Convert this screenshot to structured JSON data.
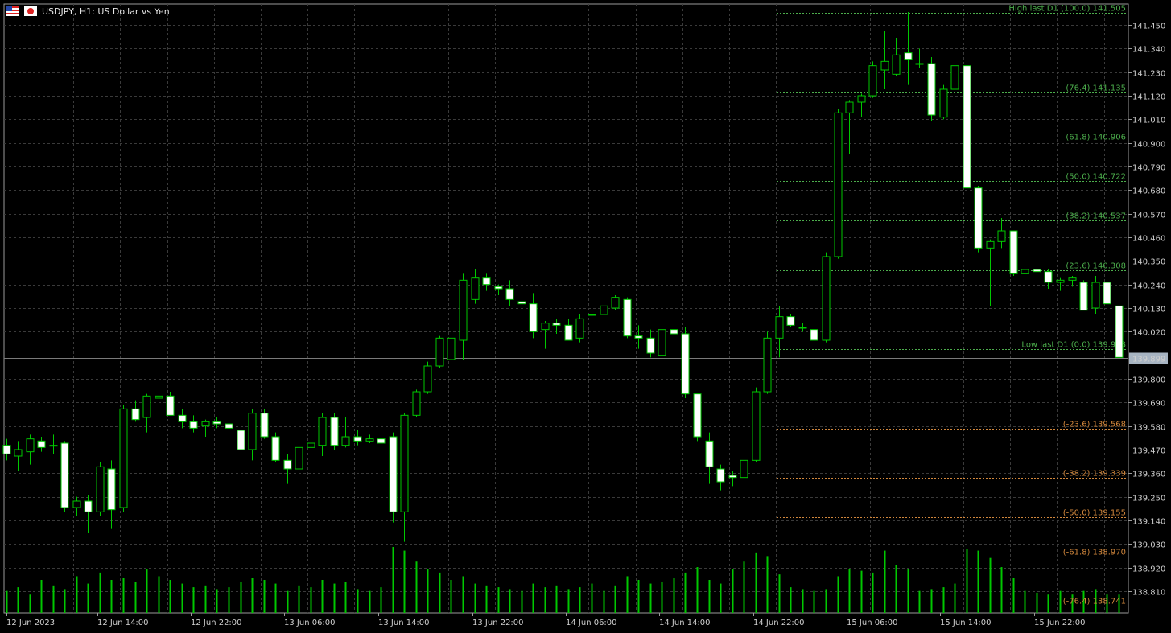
{
  "header": {
    "symbol_title": "USDJPY, H1:  US Dollar vs Yen",
    "flag_left_icon": "us-flag-icon",
    "flag_right_icon": "jp-flag-icon"
  },
  "colors": {
    "background": "#000000",
    "grid": "#3a3a3a",
    "candle_up_fill": "#000000",
    "candle_down_fill": "#ffffff",
    "candle_outline": "#00c800",
    "volume": "#00c800",
    "fib_upper": "#4cae4c",
    "fib_lower": "#d2873c",
    "price_line": "#7a7a7a",
    "current_price_badge": "#a7b4c2"
  },
  "current_price_label": "139.899",
  "chart_data": {
    "type": "candlestick",
    "symbol": "USDJPY",
    "timeframe": "H1",
    "title": "USDJPY, H1:  US Dollar vs Yen",
    "y_axis_labels": [
      "141.450",
      "141.340",
      "141.230",
      "141.120",
      "141.010",
      "140.900",
      "140.790",
      "140.680",
      "140.570",
      "140.460",
      "140.350",
      "140.240",
      "140.130",
      "140.020",
      "139.899",
      "139.800",
      "139.690",
      "139.580",
      "139.470",
      "139.360",
      "139.250",
      "139.140",
      "139.030",
      "138.920",
      "138.810"
    ],
    "x_axis_labels": [
      "12 Jun 2023",
      "12 Jun 14:00",
      "12 Jun 22:00",
      "13 Jun 06:00",
      "13 Jun 14:00",
      "13 Jun 22:00",
      "14 Jun 06:00",
      "14 Jun 14:00",
      "14 Jun 22:00",
      "15 Jun 06:00",
      "15 Jun 14:00",
      "15 Jun 22:00"
    ],
    "current_price": 139.899,
    "fibonacci_levels": [
      {
        "label": "High last D1 (100.0) 141.505",
        "price": 141.505,
        "group": "upper"
      },
      {
        "label": "(76.4) 141.135",
        "price": 141.135,
        "group": "upper"
      },
      {
        "label": "(61.8) 140.906",
        "price": 140.906,
        "group": "upper"
      },
      {
        "label": "(50.0) 140.722",
        "price": 140.722,
        "group": "upper"
      },
      {
        "label": "(38.2) 140.537",
        "price": 140.537,
        "group": "upper"
      },
      {
        "label": "(23.6) 140.308",
        "price": 140.308,
        "group": "upper"
      },
      {
        "label": "Low last D1 (0.0) 139.938",
        "price": 139.938,
        "group": "upper"
      },
      {
        "label": "(-23.6) 139.568",
        "price": 139.568,
        "group": "lower"
      },
      {
        "label": "(-38.2) 139.339",
        "price": 139.339,
        "group": "lower"
      },
      {
        "label": "(-50.0) 139.155",
        "price": 139.155,
        "group": "lower"
      },
      {
        "label": "(-61.8) 138.970",
        "price": 138.97,
        "group": "lower"
      },
      {
        "label": "(-76.4) 138.741",
        "price": 138.741,
        "group": "lower"
      }
    ],
    "candles": [
      {
        "o": 139.49,
        "h": 139.52,
        "l": 139.42,
        "c": 139.45
      },
      {
        "o": 139.44,
        "h": 139.51,
        "l": 139.37,
        "c": 139.47
      },
      {
        "o": 139.46,
        "h": 139.54,
        "l": 139.4,
        "c": 139.52
      },
      {
        "o": 139.51,
        "h": 139.53,
        "l": 139.46,
        "c": 139.48
      },
      {
        "o": 139.49,
        "h": 139.54,
        "l": 139.45,
        "c": 139.49
      },
      {
        "o": 139.5,
        "h": 139.51,
        "l": 139.18,
        "c": 139.2
      },
      {
        "o": 139.2,
        "h": 139.25,
        "l": 139.16,
        "c": 139.23
      },
      {
        "o": 139.23,
        "h": 139.26,
        "l": 139.08,
        "c": 139.18
      },
      {
        "o": 139.18,
        "h": 139.41,
        "l": 139.16,
        "c": 139.39
      },
      {
        "o": 139.38,
        "h": 139.42,
        "l": 139.1,
        "c": 139.19
      },
      {
        "o": 139.2,
        "h": 139.68,
        "l": 139.18,
        "c": 139.66
      },
      {
        "o": 139.66,
        "h": 139.7,
        "l": 139.6,
        "c": 139.61
      },
      {
        "o": 139.62,
        "h": 139.73,
        "l": 139.55,
        "c": 139.72
      },
      {
        "o": 139.71,
        "h": 139.75,
        "l": 139.65,
        "c": 139.72
      },
      {
        "o": 139.72,
        "h": 139.74,
        "l": 139.63,
        "c": 139.63
      },
      {
        "o": 139.63,
        "h": 139.66,
        "l": 139.57,
        "c": 139.6
      },
      {
        "o": 139.6,
        "h": 139.63,
        "l": 139.55,
        "c": 139.57
      },
      {
        "o": 139.58,
        "h": 139.61,
        "l": 139.53,
        "c": 139.6
      },
      {
        "o": 139.6,
        "h": 139.62,
        "l": 139.57,
        "c": 139.59
      },
      {
        "o": 139.59,
        "h": 139.6,
        "l": 139.53,
        "c": 139.57
      },
      {
        "o": 139.56,
        "h": 139.59,
        "l": 139.44,
        "c": 139.47
      },
      {
        "o": 139.47,
        "h": 139.66,
        "l": 139.42,
        "c": 139.64
      },
      {
        "o": 139.64,
        "h": 139.66,
        "l": 139.52,
        "c": 139.53
      },
      {
        "o": 139.53,
        "h": 139.55,
        "l": 139.41,
        "c": 139.42
      },
      {
        "o": 139.42,
        "h": 139.45,
        "l": 139.31,
        "c": 139.38
      },
      {
        "o": 139.38,
        "h": 139.5,
        "l": 139.37,
        "c": 139.48
      },
      {
        "o": 139.48,
        "h": 139.52,
        "l": 139.43,
        "c": 139.5
      },
      {
        "o": 139.49,
        "h": 139.64,
        "l": 139.44,
        "c": 139.62
      },
      {
        "o": 139.62,
        "h": 139.64,
        "l": 139.47,
        "c": 139.49
      },
      {
        "o": 139.49,
        "h": 139.62,
        "l": 139.48,
        "c": 139.53
      },
      {
        "o": 139.53,
        "h": 139.56,
        "l": 139.49,
        "c": 139.51
      },
      {
        "o": 139.51,
        "h": 139.54,
        "l": 139.5,
        "c": 139.52
      },
      {
        "o": 139.52,
        "h": 139.55,
        "l": 139.49,
        "c": 139.5
      },
      {
        "o": 139.53,
        "h": 139.55,
        "l": 139.13,
        "c": 139.18
      },
      {
        "o": 139.18,
        "h": 139.64,
        "l": 139.04,
        "c": 139.63
      },
      {
        "o": 139.63,
        "h": 139.75,
        "l": 139.62,
        "c": 139.74
      },
      {
        "o": 139.74,
        "h": 139.88,
        "l": 139.73,
        "c": 139.86
      },
      {
        "o": 139.86,
        "h": 140.0,
        "l": 139.85,
        "c": 139.99
      },
      {
        "o": 139.89,
        "h": 139.99,
        "l": 139.87,
        "c": 139.99
      },
      {
        "o": 139.98,
        "h": 140.29,
        "l": 139.89,
        "c": 140.26
      },
      {
        "o": 140.17,
        "h": 140.31,
        "l": 140.15,
        "c": 140.27
      },
      {
        "o": 140.27,
        "h": 140.29,
        "l": 140.21,
        "c": 140.24
      },
      {
        "o": 140.23,
        "h": 140.24,
        "l": 140.19,
        "c": 140.22
      },
      {
        "o": 140.22,
        "h": 140.26,
        "l": 140.14,
        "c": 140.17
      },
      {
        "o": 140.16,
        "h": 140.25,
        "l": 140.13,
        "c": 140.15
      },
      {
        "o": 140.15,
        "h": 140.2,
        "l": 139.99,
        "c": 140.02
      },
      {
        "o": 140.03,
        "h": 140.07,
        "l": 139.94,
        "c": 140.06
      },
      {
        "o": 140.06,
        "h": 140.08,
        "l": 140.01,
        "c": 140.05
      },
      {
        "o": 140.05,
        "h": 140.08,
        "l": 140.0,
        "c": 139.98
      },
      {
        "o": 139.99,
        "h": 140.1,
        "l": 139.97,
        "c": 140.08
      },
      {
        "o": 140.1,
        "h": 140.12,
        "l": 140.08,
        "c": 140.1
      },
      {
        "o": 140.1,
        "h": 140.16,
        "l": 140.06,
        "c": 140.14
      },
      {
        "o": 140.13,
        "h": 140.19,
        "l": 140.12,
        "c": 140.18
      },
      {
        "o": 140.17,
        "h": 140.18,
        "l": 139.99,
        "c": 140.0
      },
      {
        "o": 140.0,
        "h": 140.05,
        "l": 139.94,
        "c": 139.99
      },
      {
        "o": 139.99,
        "h": 140.03,
        "l": 139.9,
        "c": 139.92
      },
      {
        "o": 139.91,
        "h": 140.05,
        "l": 139.9,
        "c": 140.03
      },
      {
        "o": 140.03,
        "h": 140.07,
        "l": 140.0,
        "c": 140.01
      },
      {
        "o": 140.01,
        "h": 140.04,
        "l": 139.71,
        "c": 139.73
      },
      {
        "o": 139.73,
        "h": 139.73,
        "l": 139.51,
        "c": 139.53
      },
      {
        "o": 139.51,
        "h": 139.55,
        "l": 139.31,
        "c": 139.39
      },
      {
        "o": 139.38,
        "h": 139.4,
        "l": 139.28,
        "c": 139.32
      },
      {
        "o": 139.35,
        "h": 139.37,
        "l": 139.3,
        "c": 139.34
      },
      {
        "o": 139.34,
        "h": 139.44,
        "l": 139.32,
        "c": 139.42
      },
      {
        "o": 139.42,
        "h": 139.76,
        "l": 139.41,
        "c": 139.74
      },
      {
        "o": 139.74,
        "h": 140.02,
        "l": 139.73,
        "c": 139.99
      },
      {
        "o": 139.99,
        "h": 140.14,
        "l": 139.9,
        "c": 140.09
      },
      {
        "o": 140.09,
        "h": 140.1,
        "l": 140.04,
        "c": 140.05
      },
      {
        "o": 140.04,
        "h": 140.06,
        "l": 140.02,
        "c": 140.04
      },
      {
        "o": 140.03,
        "h": 140.09,
        "l": 139.97,
        "c": 139.98
      },
      {
        "o": 139.98,
        "h": 140.39,
        "l": 139.97,
        "c": 140.37
      },
      {
        "o": 140.37,
        "h": 141.06,
        "l": 140.36,
        "c": 141.04
      },
      {
        "o": 141.04,
        "h": 141.1,
        "l": 140.85,
        "c": 141.09
      },
      {
        "o": 141.09,
        "h": 141.13,
        "l": 141.02,
        "c": 141.12
      },
      {
        "o": 141.12,
        "h": 141.28,
        "l": 141.11,
        "c": 141.26
      },
      {
        "o": 141.24,
        "h": 141.42,
        "l": 141.15,
        "c": 141.28
      },
      {
        "o": 141.22,
        "h": 141.39,
        "l": 141.21,
        "c": 141.31
      },
      {
        "o": 141.32,
        "h": 141.51,
        "l": 141.17,
        "c": 141.29
      },
      {
        "o": 141.27,
        "h": 141.34,
        "l": 141.25,
        "c": 141.27
      },
      {
        "o": 141.27,
        "h": 141.3,
        "l": 141.0,
        "c": 141.03
      },
      {
        "o": 141.02,
        "h": 141.17,
        "l": 141.01,
        "c": 141.15
      },
      {
        "o": 141.15,
        "h": 141.27,
        "l": 140.94,
        "c": 141.26
      },
      {
        "o": 141.26,
        "h": 141.29,
        "l": 140.65,
        "c": 140.69
      },
      {
        "o": 140.69,
        "h": 140.7,
        "l": 140.39,
        "c": 140.41
      },
      {
        "o": 140.41,
        "h": 140.45,
        "l": 140.14,
        "c": 140.44
      },
      {
        "o": 140.44,
        "h": 140.55,
        "l": 140.41,
        "c": 140.49
      },
      {
        "o": 140.49,
        "h": 140.49,
        "l": 140.28,
        "c": 140.29
      },
      {
        "o": 140.29,
        "h": 140.32,
        "l": 140.25,
        "c": 140.31
      },
      {
        "o": 140.31,
        "h": 140.32,
        "l": 140.28,
        "c": 140.3
      },
      {
        "o": 140.3,
        "h": 140.31,
        "l": 140.22,
        "c": 140.25
      },
      {
        "o": 140.25,
        "h": 140.27,
        "l": 140.21,
        "c": 140.26
      },
      {
        "o": 140.26,
        "h": 140.28,
        "l": 140.23,
        "c": 140.27
      },
      {
        "o": 140.25,
        "h": 140.26,
        "l": 140.12,
        "c": 140.12
      },
      {
        "o": 140.13,
        "h": 140.28,
        "l": 140.1,
        "c": 140.25
      },
      {
        "o": 140.25,
        "h": 140.27,
        "l": 140.13,
        "c": 140.15
      },
      {
        "o": 140.14,
        "h": 140.14,
        "l": 139.89,
        "c": 139.9
      }
    ],
    "volume": [
      12,
      14,
      10,
      18,
      15,
      13,
      20,
      16,
      22,
      18,
      19,
      17,
      24,
      20,
      18,
      16,
      14,
      15,
      13,
      14,
      17,
      19,
      18,
      16,
      12,
      15,
      14,
      18,
      16,
      17,
      13,
      12,
      14,
      36,
      34,
      28,
      24,
      22,
      18,
      20,
      16,
      15,
      14,
      13,
      12,
      16,
      14,
      15,
      13,
      14,
      16,
      12,
      15,
      20,
      18,
      16,
      17,
      19,
      22,
      25,
      18,
      16,
      24,
      28,
      33,
      31,
      21,
      14,
      13,
      12,
      13,
      20,
      24,
      23,
      22,
      34,
      26,
      24,
      12,
      13,
      14,
      16,
      35,
      34,
      30,
      25,
      19,
      12,
      11,
      10,
      12,
      10,
      12,
      13,
      10,
      10
    ]
  }
}
